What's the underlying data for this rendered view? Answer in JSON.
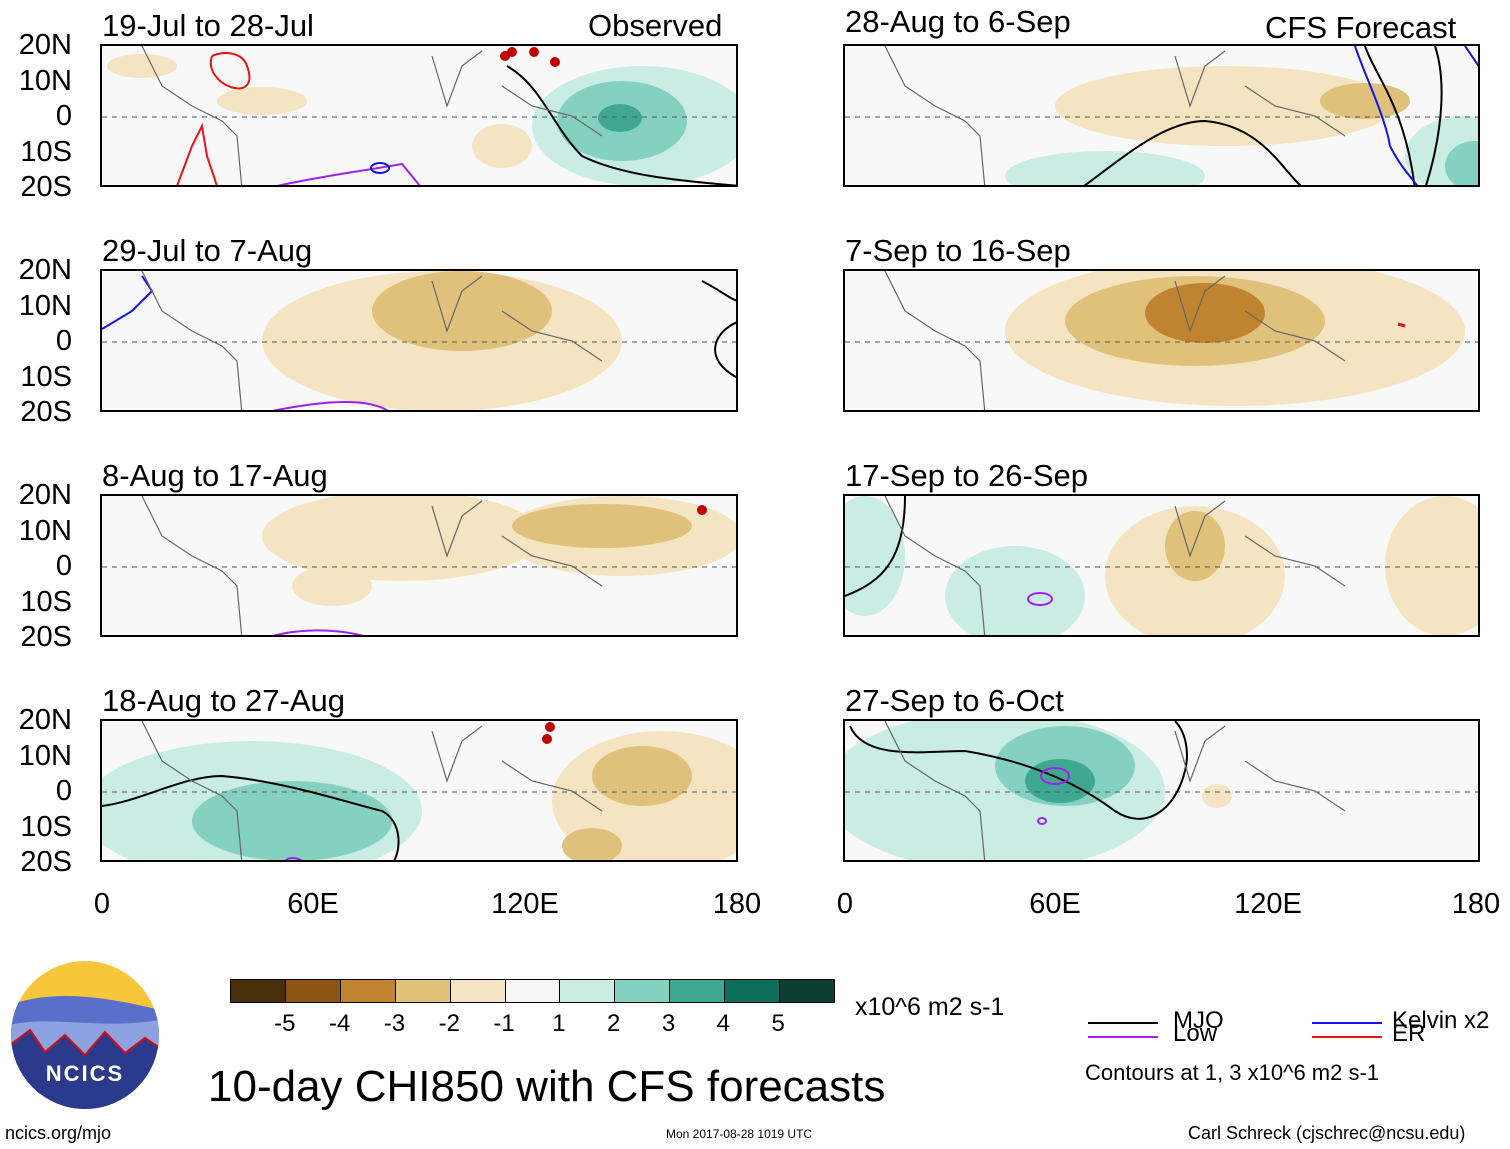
{
  "left_column_label": "Observed",
  "right_column_label": "CFS Forecast",
  "panels": [
    {
      "period": "19-Jul to 28-Jul"
    },
    {
      "period": "29-Jul to 7-Aug"
    },
    {
      "period": "8-Aug to 17-Aug"
    },
    {
      "period": "18-Aug to 27-Aug"
    },
    {
      "period": "28-Aug to 6-Sep"
    },
    {
      "period": "7-Sep to 16-Sep"
    },
    {
      "period": "17-Sep to 26-Sep"
    },
    {
      "period": "27-Sep to 6-Oct"
    }
  ],
  "lat_labels": [
    "20N",
    "10N",
    "0",
    "10S",
    "20S"
  ],
  "lon_labels": [
    "0",
    "60E",
    "120E",
    "180"
  ],
  "colorbar": {
    "ticks": [
      "-5",
      "-4",
      "-3",
      "-2",
      "-1",
      "1",
      "2",
      "3",
      "4",
      "5"
    ],
    "units": "x10^6 m2 s-1",
    "colors": [
      "#4a2f0c",
      "#8c5514",
      "#c08430",
      "#dfc17c",
      "#f4e4c1",
      "#f6f6f6",
      "#c9ece3",
      "#85d1c1",
      "#3fa892",
      "#0e6e5e",
      "#0b3d33"
    ]
  },
  "legend": {
    "mjo": "MJO",
    "kelvin": "Kelvin x2",
    "low": "Low",
    "er": "ER",
    "contours_note": "Contours at 1, 3 x10^6 m2 s-1",
    "colors": {
      "mjo": "#000000",
      "kelvin": "#1414e6",
      "low": "#a020f0",
      "er": "#e61414"
    }
  },
  "main_title": "10-day CHI850 with CFS forecasts",
  "logo_text": "NCICS",
  "website": "ncics.org/mjo",
  "timestamp": "Mon 2017-08-28 1019 UTC",
  "author": "Carl Schreck (cjschrec@ncsu.edu)"
}
